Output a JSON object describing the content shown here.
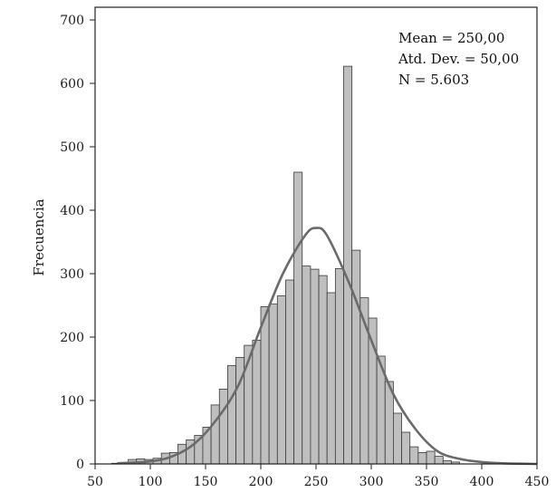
{
  "chart_data": {
    "type": "bar",
    "title": "",
    "xlabel": "",
    "ylabel": "Frecuencia",
    "xlim": [
      50,
      450
    ],
    "ylim": [
      0,
      720
    ],
    "bin_width": 7.5,
    "xticks": [
      "50",
      "100",
      "150",
      "200",
      "250",
      "300",
      "350",
      "400",
      "450"
    ],
    "yticks": [
      "0",
      "100",
      "200",
      "300",
      "400",
      "500",
      "600",
      "700"
    ],
    "annotations": [
      "Mean = 250,00",
      "Atd. Dev. = 50,00",
      "N = 5.603"
    ],
    "bars": {
      "x_start": [
        50,
        57.5,
        65,
        72.5,
        80,
        87.5,
        95,
        102.5,
        110,
        117.5,
        125,
        132.5,
        140,
        147.5,
        155,
        162.5,
        170,
        177.5,
        185,
        192.5,
        200,
        207.5,
        215,
        222.5,
        230,
        237.5,
        245,
        252.5,
        260,
        267.5,
        275,
        282.5,
        290,
        297.5,
        305,
        312.5,
        320,
        327.5,
        335,
        342.5,
        350,
        357.5,
        365,
        372.5,
        380,
        387.5,
        395
      ],
      "values": [
        0,
        0,
        1,
        2,
        7,
        8,
        7,
        9,
        17,
        18,
        31,
        38,
        45,
        58,
        93,
        118,
        155,
        168,
        187,
        195,
        248,
        252,
        265,
        290,
        460,
        312,
        307,
        297,
        270,
        308,
        627,
        337,
        262,
        230,
        170,
        130,
        80,
        50,
        27,
        18,
        20,
        12,
        5,
        3,
        0,
        0,
        0
      ]
    },
    "series": [
      {
        "type": "line",
        "x": [
          70,
          100,
          120,
          140,
          160,
          180,
          200,
          220,
          240,
          250,
          260,
          280,
          300,
          320,
          340,
          360,
          380,
          400,
          420,
          450
        ],
        "y": [
          1,
          4,
          12,
          32,
          70,
          125,
          215,
          300,
          360,
          372,
          360,
          285,
          195,
          110,
          55,
          20,
          8,
          3,
          1,
          0
        ]
      }
    ],
    "colors": {
      "bar_fill": "#bfbfbf",
      "bar_stroke": "#3a3a3a",
      "curve": "#6a6a6a"
    }
  }
}
